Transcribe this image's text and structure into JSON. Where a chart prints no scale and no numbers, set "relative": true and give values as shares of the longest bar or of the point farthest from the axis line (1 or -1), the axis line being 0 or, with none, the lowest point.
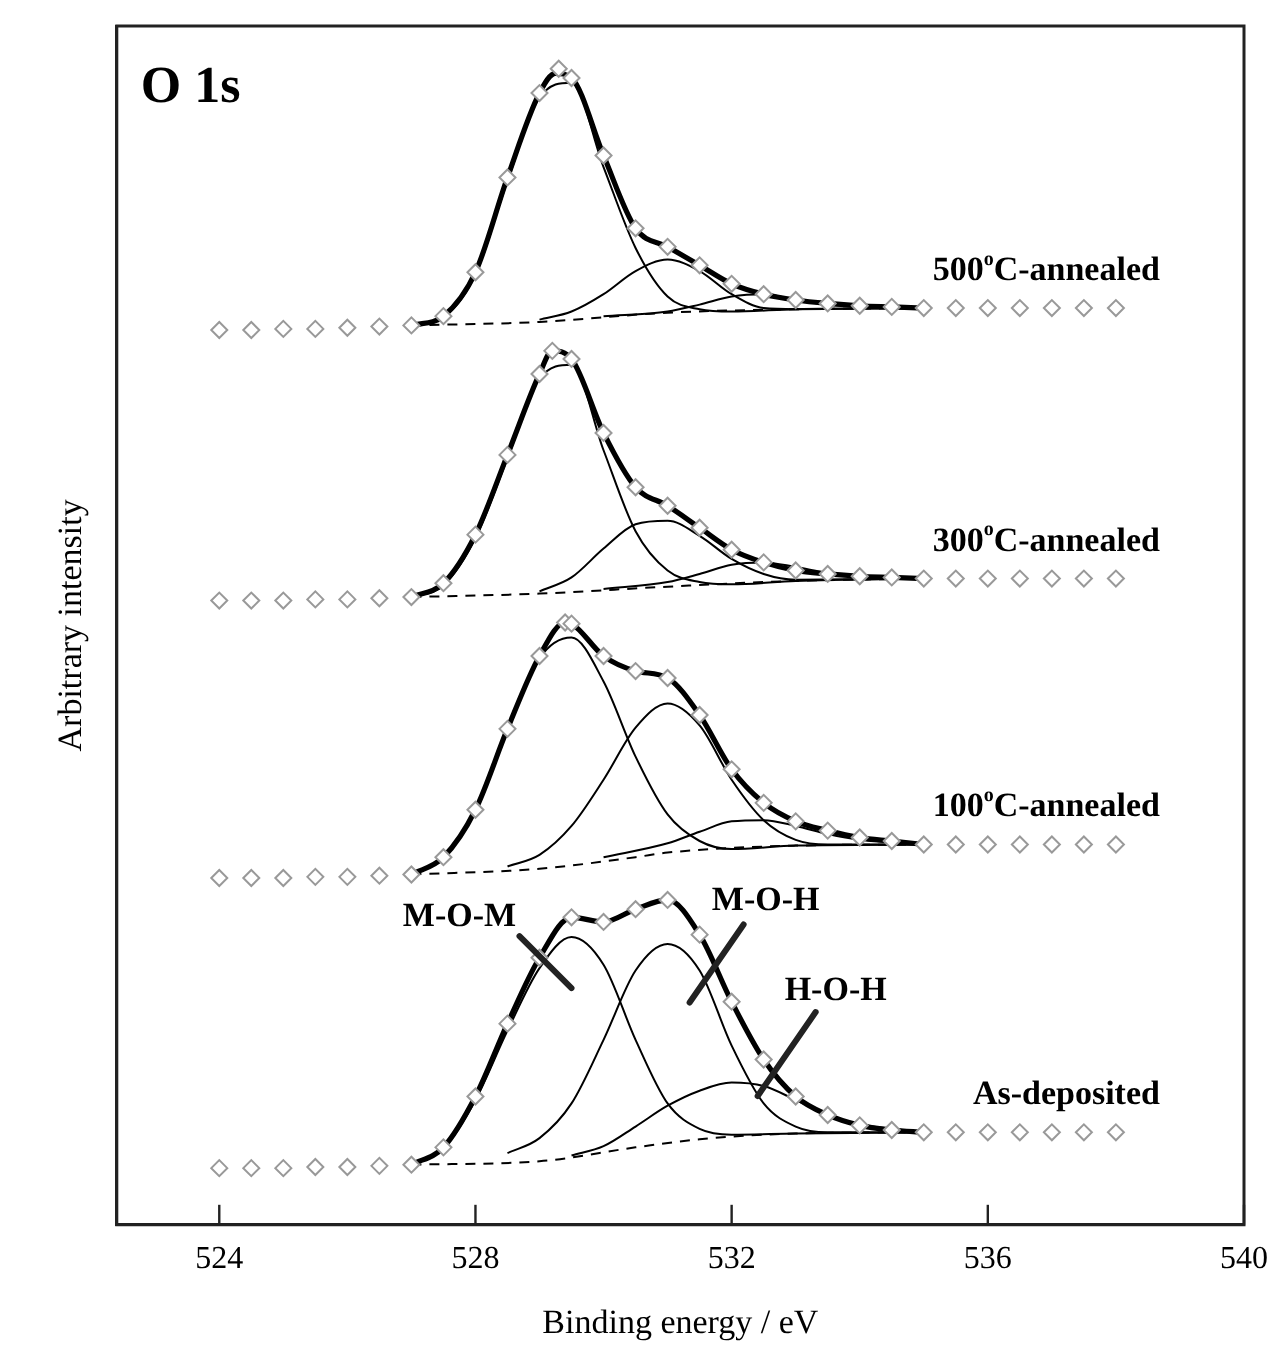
{
  "chart_data": {
    "type": "line",
    "title": "O 1s",
    "xlabel": "Binding energy / eV",
    "ylabel": "Arbitrary intensity",
    "relative": true,
    "xlim": [
      522.4,
      540
    ],
    "xticks": [
      524,
      528,
      532,
      536,
      540
    ],
    "grid": false,
    "legend": false,
    "annotations": [
      {
        "text": "M-O-M",
        "x": 529,
        "y": 0.222
      },
      {
        "text": "M-O-H",
        "x": 531.5,
        "y": 0.22
      },
      {
        "text": "H-O-H",
        "x": 532.5,
        "y": 0.12
      }
    ],
    "series": [
      {
        "type": "scatter",
        "name": "500$^{o}$C-annealed",
        "color": "#999999",
        "marker": "diamond",
        "x": [
          524,
          524.5,
          525,
          525.5,
          526,
          526.5,
          527,
          527.5,
          528,
          528.5,
          529,
          529.3,
          529.5,
          530,
          530.5,
          531,
          531.5,
          532,
          532.5,
          533,
          533.5,
          534,
          534.5,
          535,
          535.5,
          536,
          536.5,
          537,
          537.5,
          538
        ],
        "values": [
          0.774,
          0.774,
          0.775,
          0.775,
          0.776,
          0.777,
          0.778,
          0.786,
          0.824,
          0.906,
          0.979,
          1.0,
          0.992,
          0.925,
          0.862,
          0.846,
          0.83,
          0.814,
          0.805,
          0.8,
          0.797,
          0.795,
          0.794,
          0.793,
          0.793,
          0.793,
          0.793,
          0.793,
          0.793,
          0.793
        ]
      },
      {
        "type": "line",
        "color": "#000000",
        "marker": "none",
        "x": [
          527,
          527.5,
          528,
          528.5,
          529,
          529.25,
          529.5,
          530,
          530.5,
          531,
          531.5,
          532,
          532.5,
          533,
          533.5,
          534,
          534.5,
          535
        ],
        "values": [
          0.778,
          0.786,
          0.824,
          0.906,
          0.979,
          0.996,
          0.992,
          0.925,
          0.862,
          0.846,
          0.83,
          0.814,
          0.805,
          0.8,
          0.797,
          0.795,
          0.794,
          0.793
        ]
      },
      {
        "type": "line",
        "color": "#000000",
        "marker": "none",
        "x": [
          527,
          527.5,
          528,
          528.5,
          529,
          529.5,
          530,
          530.5,
          531,
          531.5,
          532,
          533,
          535
        ],
        "values": [
          0.778,
          0.785,
          0.822,
          0.903,
          0.975,
          0.988,
          0.915,
          0.845,
          0.803,
          0.792,
          0.79,
          0.792,
          0.793
        ]
      },
      {
        "type": "line",
        "color": "#000000",
        "marker": "none",
        "x": [
          529,
          529.5,
          530,
          530.5,
          531,
          531.5,
          532,
          532.5,
          533,
          535
        ],
        "values": [
          0.783,
          0.79,
          0.805,
          0.825,
          0.835,
          0.825,
          0.805,
          0.793,
          0.792,
          0.793
        ]
      },
      {
        "type": "line",
        "color": "#000000",
        "marker": "none",
        "x": [
          530,
          531,
          531.5,
          532,
          532.5,
          533,
          533.5,
          534,
          535
        ],
        "values": [
          0.786,
          0.79,
          0.796,
          0.803,
          0.805,
          0.8,
          0.796,
          0.794,
          0.793
        ]
      },
      {
        "type": "line",
        "color": "#000000",
        "marker": "none",
        "line_style": "dashed",
        "x": [
          527,
          529,
          531,
          533,
          535
        ],
        "values": [
          0.778,
          0.781,
          0.789,
          0.792,
          0.793
        ]
      },
      {
        "type": "scatter",
        "name": "300$^{o}$C-annealed",
        "color": "#999999",
        "marker": "diamond",
        "x": [
          524,
          524.5,
          525,
          525.5,
          526,
          526.5,
          527,
          527.5,
          528,
          528.5,
          529,
          529.2,
          529.5,
          530,
          530.5,
          531,
          531.5,
          532,
          532.5,
          533,
          533.5,
          534,
          534.5,
          535,
          535.5,
          536,
          536.5,
          537,
          537.5,
          538
        ],
        "values": [
          0.54,
          0.54,
          0.54,
          0.541,
          0.541,
          0.542,
          0.543,
          0.555,
          0.597,
          0.666,
          0.736,
          0.756,
          0.749,
          0.685,
          0.638,
          0.622,
          0.603,
          0.584,
          0.573,
          0.566,
          0.563,
          0.561,
          0.56,
          0.559,
          0.559,
          0.559,
          0.559,
          0.559,
          0.559,
          0.559
        ]
      },
      {
        "type": "line",
        "color": "#000000",
        "marker": "none",
        "x": [
          527,
          527.5,
          528,
          528.5,
          529,
          529.2,
          529.5,
          530,
          530.5,
          531,
          531.5,
          532,
          532.5,
          533,
          533.5,
          534,
          534.5,
          535
        ],
        "values": [
          0.543,
          0.555,
          0.597,
          0.666,
          0.736,
          0.756,
          0.749,
          0.685,
          0.638,
          0.622,
          0.603,
          0.584,
          0.573,
          0.566,
          0.563,
          0.561,
          0.56,
          0.559
        ]
      },
      {
        "type": "line",
        "color": "#000000",
        "marker": "none",
        "x": [
          527,
          527.5,
          528,
          528.5,
          529,
          529.5,
          530,
          530.5,
          531,
          531.5,
          532,
          533,
          535
        ],
        "values": [
          0.543,
          0.553,
          0.594,
          0.663,
          0.732,
          0.744,
          0.67,
          0.6,
          0.566,
          0.556,
          0.554,
          0.557,
          0.559
        ]
      },
      {
        "type": "line",
        "color": "#000000",
        "marker": "none",
        "x": [
          529,
          529.5,
          530,
          530.5,
          531,
          531.5,
          532,
          532.5,
          533,
          535
        ],
        "values": [
          0.548,
          0.56,
          0.585,
          0.606,
          0.609,
          0.596,
          0.576,
          0.563,
          0.558,
          0.559
        ]
      },
      {
        "type": "line",
        "color": "#000000",
        "marker": "none",
        "x": [
          530,
          531,
          531.5,
          532,
          532.5,
          533,
          533.5,
          534,
          535
        ],
        "values": [
          0.55,
          0.556,
          0.563,
          0.571,
          0.573,
          0.569,
          0.564,
          0.561,
          0.559
        ]
      },
      {
        "type": "line",
        "color": "#000000",
        "marker": "none",
        "line_style": "dashed",
        "x": [
          527,
          529,
          531,
          533,
          535
        ],
        "values": [
          0.543,
          0.546,
          0.552,
          0.557,
          0.559
        ]
      },
      {
        "type": "scatter",
        "name": "100$^{o}$C-annealed",
        "color": "#999999",
        "marker": "diamond",
        "x": [
          524,
          524.5,
          525,
          525.5,
          526,
          526.5,
          527,
          527.5,
          528,
          528.5,
          529,
          529.4,
          529.5,
          530,
          530.5,
          531,
          531.5,
          532,
          532.5,
          533,
          533.5,
          534,
          534.5,
          535,
          535.5,
          536,
          536.5,
          537,
          537.5,
          538
        ],
        "values": [
          0.3,
          0.3,
          0.3,
          0.301,
          0.301,
          0.302,
          0.303,
          0.318,
          0.359,
          0.429,
          0.492,
          0.521,
          0.52,
          0.492,
          0.479,
          0.473,
          0.441,
          0.394,
          0.365,
          0.349,
          0.341,
          0.335,
          0.332,
          0.329,
          0.329,
          0.329,
          0.329,
          0.329,
          0.329,
          0.329
        ]
      },
      {
        "type": "line",
        "color": "#000000",
        "marker": "none",
        "x": [
          527,
          527.5,
          528,
          528.5,
          529,
          529.4,
          529.5,
          530,
          530.5,
          531,
          531.5,
          532,
          532.5,
          533,
          533.5,
          534,
          534.5,
          535
        ],
        "values": [
          0.303,
          0.318,
          0.359,
          0.429,
          0.492,
          0.521,
          0.52,
          0.492,
          0.479,
          0.473,
          0.441,
          0.394,
          0.365,
          0.349,
          0.341,
          0.335,
          0.332,
          0.329
        ]
      },
      {
        "type": "line",
        "color": "#000000",
        "marker": "none",
        "x": [
          527,
          527.5,
          528,
          528.5,
          529,
          529.5,
          530,
          530.5,
          531,
          531.5,
          532,
          533,
          535
        ],
        "values": [
          0.303,
          0.318,
          0.358,
          0.427,
          0.49,
          0.508,
          0.47,
          0.405,
          0.355,
          0.332,
          0.325,
          0.328,
          0.329
        ]
      },
      {
        "type": "line",
        "color": "#000000",
        "marker": "none",
        "x": [
          528.5,
          529,
          529.5,
          530,
          530.5,
          531,
          531.5,
          532,
          532.5,
          533,
          533.5,
          535
        ],
        "values": [
          0.31,
          0.32,
          0.345,
          0.385,
          0.43,
          0.451,
          0.432,
          0.385,
          0.35,
          0.333,
          0.329,
          0.329
        ]
      },
      {
        "type": "line",
        "color": "#000000",
        "marker": "none",
        "x": [
          530,
          531,
          531.5,
          532,
          532.5,
          533,
          533.5,
          534,
          535
        ],
        "values": [
          0.318,
          0.33,
          0.34,
          0.349,
          0.35,
          0.345,
          0.338,
          0.333,
          0.329
        ]
      },
      {
        "type": "line",
        "color": "#000000",
        "marker": "none",
        "line_style": "dashed",
        "x": [
          527,
          529,
          530.5,
          531,
          533,
          535
        ],
        "values": [
          0.303,
          0.308,
          0.318,
          0.322,
          0.328,
          0.329
        ]
      },
      {
        "type": "scatter",
        "name": "As-deposited",
        "color": "#999999",
        "marker": "diamond",
        "x": [
          524,
          524.5,
          525,
          525.5,
          526,
          526.5,
          527,
          527.5,
          528,
          528.5,
          529,
          529.5,
          530,
          530.5,
          531,
          531.5,
          532,
          532.5,
          533,
          533.5,
          534,
          534.5,
          535,
          535.5,
          536,
          536.5,
          537,
          537.5,
          538
        ],
        "values": [
          0.049,
          0.049,
          0.049,
          0.05,
          0.05,
          0.051,
          0.052,
          0.067,
          0.111,
          0.174,
          0.231,
          0.266,
          0.262,
          0.273,
          0.281,
          0.251,
          0.193,
          0.143,
          0.111,
          0.095,
          0.086,
          0.082,
          0.08,
          0.08,
          0.08,
          0.08,
          0.08,
          0.08,
          0.08
        ]
      },
      {
        "type": "line",
        "color": "#000000",
        "marker": "none",
        "x": [
          527,
          527.5,
          528,
          528.5,
          529,
          529.5,
          530,
          530.5,
          531,
          531.5,
          532,
          532.5,
          533,
          533.5,
          534,
          534.5,
          535
        ],
        "values": [
          0.052,
          0.067,
          0.111,
          0.174,
          0.231,
          0.266,
          0.262,
          0.273,
          0.281,
          0.251,
          0.193,
          0.143,
          0.111,
          0.095,
          0.086,
          0.082,
          0.08
        ]
      },
      {
        "type": "line",
        "color": "#000000",
        "marker": "none",
        "x": [
          527,
          527.5,
          528,
          528.5,
          529,
          529.5,
          530,
          530.5,
          531,
          531.5,
          532,
          533,
          535
        ],
        "values": [
          0.052,
          0.066,
          0.108,
          0.168,
          0.222,
          0.249,
          0.225,
          0.16,
          0.105,
          0.083,
          0.078,
          0.079,
          0.08
        ]
      },
      {
        "type": "line",
        "color": "#000000",
        "marker": "none",
        "x": [
          528.5,
          529,
          529.5,
          530,
          530.5,
          531,
          531.5,
          532,
          532.5,
          533,
          533.5,
          535
        ],
        "values": [
          0.062,
          0.075,
          0.105,
          0.16,
          0.22,
          0.243,
          0.22,
          0.155,
          0.105,
          0.085,
          0.08,
          0.08
        ]
      },
      {
        "type": "line",
        "color": "#000000",
        "marker": "none",
        "x": [
          529.5,
          530,
          530.5,
          531,
          531.5,
          532,
          532.5,
          533,
          533.5,
          534,
          535
        ],
        "values": [
          0.06,
          0.068,
          0.085,
          0.103,
          0.116,
          0.123,
          0.12,
          0.108,
          0.095,
          0.087,
          0.08
        ]
      },
      {
        "type": "line",
        "color": "#000000",
        "marker": "none",
        "line_style": "dashed",
        "x": [
          527,
          529,
          530.5,
          531.5,
          533,
          535
        ],
        "values": [
          0.052,
          0.055,
          0.067,
          0.074,
          0.079,
          0.08
        ]
      }
    ]
  }
}
